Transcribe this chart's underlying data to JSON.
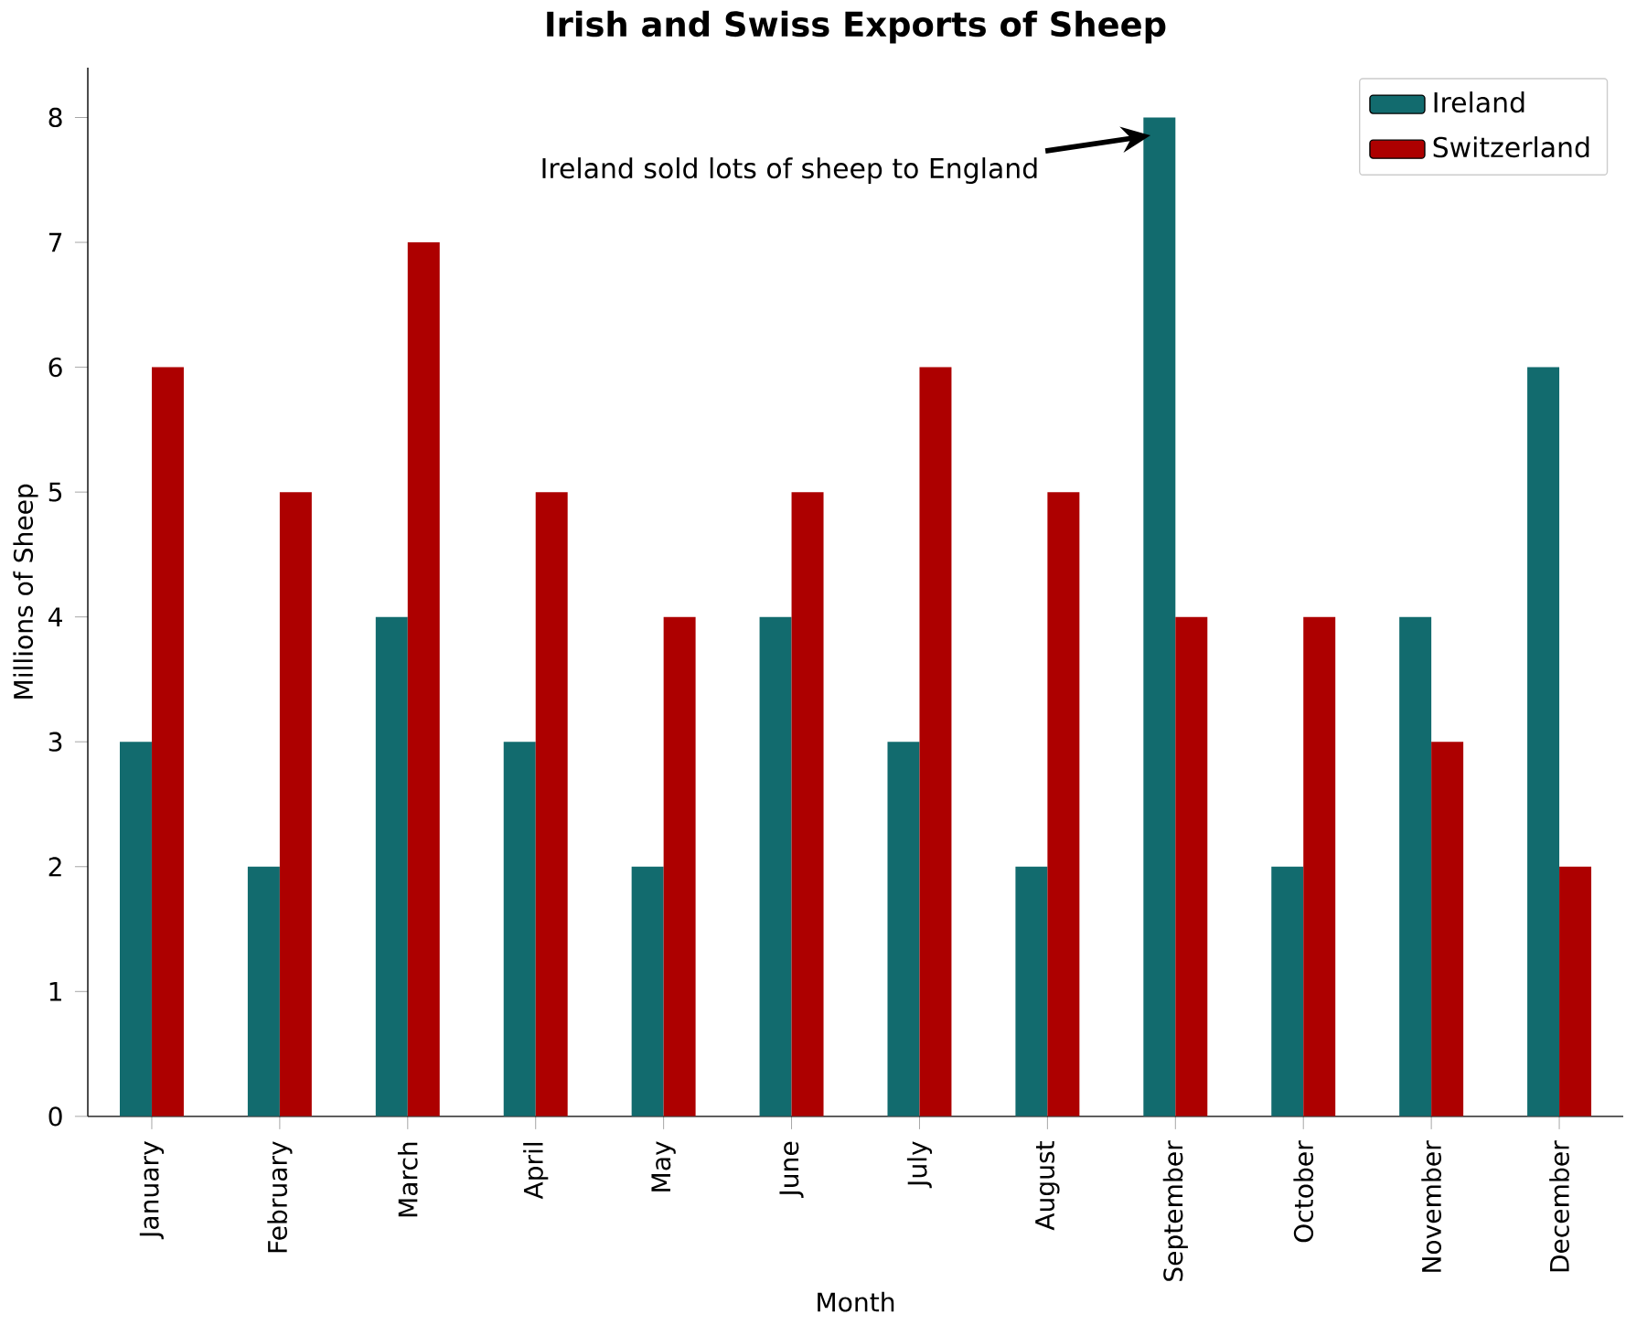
{
  "chart_data": {
    "type": "bar",
    "title": "Irish and Swiss Exports of Sheep",
    "xlabel": "Month",
    "ylabel": "Millions of Sheep",
    "categories": [
      "January",
      "February",
      "March",
      "April",
      "May",
      "June",
      "July",
      "August",
      "September",
      "October",
      "November",
      "December"
    ],
    "series": [
      {
        "name": "Ireland",
        "color": "#126b6e",
        "values": [
          3,
          2,
          4,
          3,
          2,
          4,
          3,
          2,
          8,
          2,
          4,
          6
        ]
      },
      {
        "name": "Switzerland",
        "color": "#ad0000",
        "values": [
          6,
          5,
          7,
          5,
          4,
          5,
          6,
          5,
          4,
          4,
          3,
          2
        ]
      }
    ],
    "ylim": [
      0,
      8.4
    ],
    "yticks": [
      0,
      1,
      2,
      3,
      4,
      5,
      6,
      7,
      8
    ],
    "annotations": [
      "Ireland sold lots of sheep to England"
    ],
    "legend": "top right",
    "grid": false
  }
}
